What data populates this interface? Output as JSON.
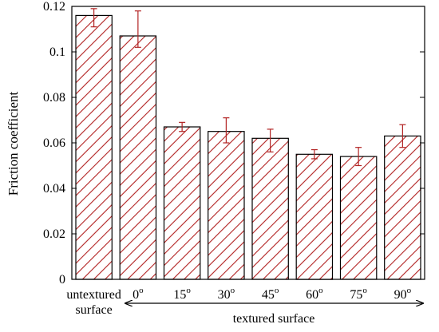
{
  "chart_data": {
    "type": "bar",
    "title": "",
    "ylabel": "Friction coefficient",
    "xlabel": "",
    "ylim": [
      0,
      0.12
    ],
    "yticks": [
      {
        "value": 0,
        "label": "0"
      },
      {
        "value": 0.02,
        "label": "0.02"
      },
      {
        "value": 0.04,
        "label": "0.04"
      },
      {
        "value": 0.06,
        "label": "0.06"
      },
      {
        "value": 0.08,
        "label": "0.08"
      },
      {
        "value": 0.1,
        "label": "0.1"
      },
      {
        "value": 0.12,
        "label": "0.12"
      }
    ],
    "categories": [
      {
        "lines": [
          "untextured",
          "surface"
        ],
        "deg": ""
      },
      {
        "lines": [
          "0"
        ],
        "deg": "o"
      },
      {
        "lines": [
          "15"
        ],
        "deg": "o"
      },
      {
        "lines": [
          "30"
        ],
        "deg": "o"
      },
      {
        "lines": [
          "45"
        ],
        "deg": "o"
      },
      {
        "lines": [
          "60"
        ],
        "deg": "o"
      },
      {
        "lines": [
          "75"
        ],
        "deg": "o"
      },
      {
        "lines": [
          "90"
        ],
        "deg": "o"
      }
    ],
    "values": [
      0.116,
      0.107,
      0.067,
      0.065,
      0.062,
      0.055,
      0.054,
      0.063
    ],
    "errors": [
      [
        0.111,
        0.119
      ],
      [
        0.102,
        0.118
      ],
      [
        0.065,
        0.069
      ],
      [
        0.06,
        0.071
      ],
      [
        0.056,
        0.066
      ],
      [
        0.053,
        0.057
      ],
      [
        0.05,
        0.058
      ],
      [
        0.058,
        0.068
      ]
    ],
    "annotation": "textured surface",
    "bar_color": "#b22222",
    "error_color": "#b22222",
    "grid": false
  }
}
